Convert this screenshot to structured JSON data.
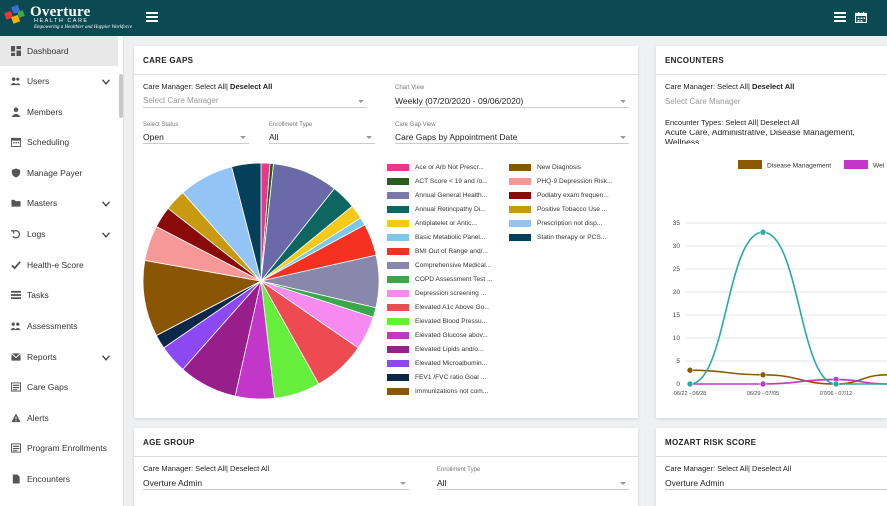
{
  "brand": {
    "name": "Overture",
    "sub": "HEALTH CARE",
    "tagline": "Empowering a Healthier and Happier Workforce"
  },
  "sidebar": {
    "items": [
      {
        "label": "Dashboard",
        "icon": "dashboard-icon"
      },
      {
        "label": "Users",
        "icon": "users-icon"
      },
      {
        "label": "Members",
        "icon": "member-icon"
      },
      {
        "label": "Scheduling",
        "icon": "calendar-icon"
      },
      {
        "label": "Manage Payer",
        "icon": "shield-icon"
      },
      {
        "label": "Masters",
        "icon": "folder-icon"
      },
      {
        "label": "Logs",
        "icon": "logs-icon"
      },
      {
        "label": "Health-e Score",
        "icon": "check-icon"
      },
      {
        "label": "Tasks",
        "icon": "tasks-icon"
      },
      {
        "label": "Assessments",
        "icon": "assessments-icon"
      },
      {
        "label": "Reports",
        "icon": "reports-icon"
      },
      {
        "label": "Care Gaps",
        "icon": "care-gaps-icon"
      },
      {
        "label": "Alerts",
        "icon": "alert-icon"
      },
      {
        "label": "Program Enrollments",
        "icon": "enrollments-icon"
      },
      {
        "label": "Encounters",
        "icon": "encounters-icon"
      }
    ]
  },
  "care_gaps": {
    "title": "CARE GAPS",
    "care_manager_label": "Care Manager:",
    "select_all": "Select All",
    "sep": "|",
    "deselect_all": "Deselect All",
    "select_care_manager_placeholder": "Select Care Manager",
    "chart_view_label": "Chart View",
    "chart_view_value": "Weekly (07/20/2020 - 09/06/2020)",
    "select_status_label": "Select Status",
    "select_status_value": "Open",
    "enrollment_type_label": "Enrollment Type",
    "enrollment_type_value": "All",
    "care_gap_view_label": "Care Gap View",
    "care_gap_view_value": "Care Gaps by Appointment Date"
  },
  "chart_data": [
    {
      "type": "pie",
      "title": "Care Gaps",
      "slices": [
        {
          "label": "Ace or Arb Not Prescr...",
          "value": 1.0,
          "color": "#e8388a"
        },
        {
          "label": "ACT Score < 19 and /o...",
          "value": 0.4,
          "color": "#2a5c20"
        },
        {
          "label": "New Diagnosis",
          "value": 7.4,
          "color": "#6b6aa8"
        },
        {
          "label": "Annual General Health...",
          "value": 2.8,
          "color": "#0e6660"
        },
        {
          "label": "Antiplatelet or Antic...",
          "value": 1.6,
          "color": "#f6c818"
        },
        {
          "label": "Basic Metabolic Panel...",
          "value": 0.9,
          "color": "#7cc8ea"
        },
        {
          "label": "BMI Out of Range and/...",
          "value": 3.6,
          "color": "#f43020"
        },
        {
          "label": "Comprehensive Medical...",
          "value": 5.9,
          "color": "#8a87ac"
        },
        {
          "label": "COPD Assessment Test ...",
          "value": 1.1,
          "color": "#3aa84a"
        },
        {
          "label": "Depression screening ...",
          "value": 3.8,
          "color": "#f68af0"
        },
        {
          "label": "Elevated A1c Above Go...",
          "value": 6.0,
          "color": "#ee4a52"
        },
        {
          "label": "Elevated Blood Pressu...",
          "value": 5.2,
          "color": "#66ee3c"
        },
        {
          "label": "Elevated Glucose abov...",
          "value": 4.4,
          "color": "#c236c8"
        },
        {
          "label": "Elevated Lipids and/o...",
          "value": 6.6,
          "color": "#981e8c"
        },
        {
          "label": "Elevated Microalbumin...",
          "value": 3.2,
          "color": "#8c48f2"
        },
        {
          "label": "FEV1 /FVC ratio Goal ...",
          "value": 1.6,
          "color": "#0c2848"
        },
        {
          "label": "Immunizations not com...",
          "value": 8.6,
          "color": "#8a5604"
        },
        {
          "label": "PHQ-9 Depression Risk...",
          "value": 4.0,
          "color": "#f69898"
        },
        {
          "label": "Podiatry exam frequen...",
          "value": 2.4,
          "color": "#8a0a0a"
        },
        {
          "label": "Positive Tobacco Use ...",
          "value": 2.4,
          "color": "#c89a10"
        },
        {
          "label": "Prescription not disp...",
          "value": 6.2,
          "color": "#94c4f6"
        },
        {
          "label": "Statin therapy or PCS...",
          "value": 3.3,
          "color": "#05405a"
        }
      ]
    },
    {
      "type": "line",
      "title": "Encounters",
      "categories": [
        "06/22 - 06/28",
        "06/29 - 07/05",
        "07/06 - 07/12"
      ],
      "ylim": [
        0,
        35
      ],
      "yticks": [
        "0",
        "5",
        "10",
        "15",
        "20",
        "25",
        "30",
        "35"
      ],
      "series": [
        {
          "name": "Disease Management",
          "color": "#8b5a00",
          "x": [
            0,
            1,
            2,
            2.7
          ],
          "values": [
            3,
            2,
            0,
            2
          ]
        },
        {
          "name": "Wellness",
          "color": "#c236c8",
          "x": [
            0,
            1,
            2,
            2.7
          ],
          "values": [
            0,
            0,
            1,
            0
          ]
        },
        {
          "name": "Acute Care",
          "color": "#2aaba0",
          "x": [
            0,
            1,
            2,
            2.7
          ],
          "values": [
            0,
            33,
            0,
            0
          ]
        }
      ]
    }
  ],
  "legend_left": [
    "Ace or Arb Not Prescr...",
    "ACT Score < 19 and /o...",
    "Annual General Health...",
    "Annual Retincpathy Di...",
    "Antiplatelet or Antic...",
    "Basic Metabolic Panel...",
    "BMI Out of Range and/...",
    "Comprehensive Medical...",
    "COPD Assessment Test ...",
    "Depression screening ...",
    "Elevated A1c Above Go...",
    "Elevated Blood Pressu...",
    "Elevated Glucose abov...",
    "Elevated Lipids and/o...",
    "Elevated Microalbumin...",
    "FEV1 /FVC ratio Goal ...",
    "Immunizations not com..."
  ],
  "legend_left_colors": [
    "#e8388a",
    "#2a5c20",
    "#7a7aa8",
    "#0e6660",
    "#f6c818",
    "#7cc8ea",
    "#f43020",
    "#8a87ac",
    "#3aa84a",
    "#f68af0",
    "#ee4a52",
    "#66ee3c",
    "#c236c8",
    "#981e8c",
    "#8c48f2",
    "#0c2848",
    "#8a5604"
  ],
  "legend_right": [
    "New Diagnosis",
    "PHQ-9 Depression Risk...",
    "Podiatry exam frequen...",
    "Positive Tobacco Use ...",
    "Prescription not disp...",
    "Statin therapy or PCS..."
  ],
  "legend_right_colors": [
    "#8a5604",
    "#f69898",
    "#8a0a0a",
    "#c89a10",
    "#94c4f6",
    "#05405a"
  ],
  "encounters": {
    "title": "ENCOUNTERS",
    "care_manager_label": "Care Manager:",
    "select_all": "Select All",
    "sep": "|",
    "deselect_all": "Deselect All",
    "select_care_manager_placeholder": "Select Care Manager",
    "encounter_types_label": "Encounter Types:",
    "encounter_types_value": "Acute Care, Administrative, Disease Management, Wellness",
    "legend": [
      "Disease Management",
      "Wel"
    ]
  },
  "age_group": {
    "title": "AGE GROUP",
    "care_manager_label": "Care Manager:",
    "select_all": "Select All",
    "sep": "|",
    "deselect_all": "Deselect All",
    "care_manager_value": "Overture Admin",
    "enrollment_type_label": "Enrollment Type",
    "enrollment_type_value": "All"
  },
  "mozart": {
    "title": "MOZART RISK SCORE",
    "care_manager_label": "Care Manager:",
    "select_all": "Select All",
    "sep": "|",
    "deselect_all": "Deselect All",
    "care_manager_value": "Overture Admin"
  }
}
